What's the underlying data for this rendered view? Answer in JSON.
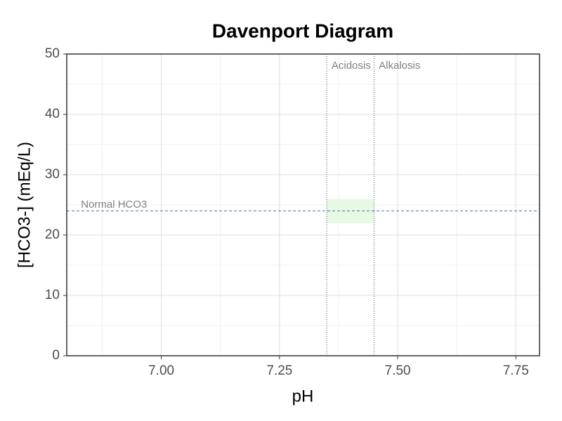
{
  "chart_data": {
    "type": "reference",
    "title": "Davenport Diagram",
    "x_label": "pH",
    "y_label": "[HCO3-] (mEq/L)",
    "xlim": [
      6.8,
      7.8
    ],
    "xticks": [
      {
        "value": 7,
        "label": "7.00"
      },
      7.25,
      {
        "value": 7.5,
        "label": "7.50"
      },
      7.75
    ],
    "ylim": [
      0,
      50
    ],
    "yticks": [
      0,
      10,
      20,
      30,
      40,
      50
    ],
    "grid": true,
    "normal_region": {
      "x": [
        7.35,
        7.45
      ],
      "y": [
        22,
        26
      ],
      "color": "#e6f9e3"
    },
    "vlines": {
      "values": [
        7.35,
        7.45
      ],
      "color": "#555555"
    },
    "hline": {
      "value": 24,
      "color": "#4a72b0"
    },
    "annotations": [
      {
        "text": "Normal HCO3",
        "x": 6.83,
        "y": 25
      },
      {
        "text": "Acidosis",
        "x": 7.36,
        "y": 48
      },
      {
        "text": "Alkalosis",
        "x": 7.46,
        "y": 48
      }
    ]
  }
}
